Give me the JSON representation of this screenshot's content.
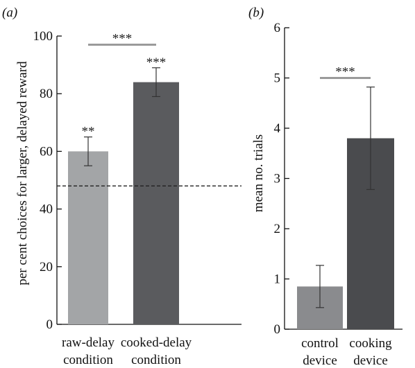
{
  "chart_data": [
    {
      "panel_label": "(a)",
      "type": "bar",
      "ylabel": "per cent choices for larger, delayed reward",
      "ylim": [
        0,
        100
      ],
      "yticks": [
        0,
        20,
        40,
        60,
        80,
        100
      ],
      "ytick_labels": [
        "0",
        "20",
        "40",
        "60",
        "80",
        "100"
      ],
      "categories": [
        "raw-delay condition",
        "cooked-delay condition"
      ],
      "category_lines": [
        [
          "raw-delay",
          "condition"
        ],
        [
          "cooked-delay",
          "condition"
        ]
      ],
      "values": [
        60,
        84
      ],
      "errors": [
        5,
        5
      ],
      "bar_colors": [
        "#a3a5a7",
        "#5a5b5e"
      ],
      "bar_stars": [
        "**",
        "***"
      ],
      "chance_line": 48,
      "comparison": {
        "from": 0,
        "to": 1,
        "label": "***",
        "y": 97
      }
    },
    {
      "panel_label": "(b)",
      "type": "bar",
      "ylabel": "mean no. trials",
      "ylim": [
        0,
        6
      ],
      "yticks": [
        0,
        1,
        2,
        3,
        4,
        5,
        6
      ],
      "ytick_labels": [
        "0",
        "1",
        "2",
        "3",
        "4",
        "5",
        "6"
      ],
      "categories": [
        "control device",
        "cooking device"
      ],
      "category_lines": [
        [
          "control",
          "device"
        ],
        [
          "cooking",
          "device"
        ]
      ],
      "values": [
        0.85,
        3.8
      ],
      "errors": [
        0.42,
        1.02
      ],
      "bar_colors": [
        "#8a8b8e",
        "#4a4b4e"
      ],
      "comparison": {
        "from": 0,
        "to": 1,
        "label": "***",
        "y": 5
      }
    }
  ]
}
